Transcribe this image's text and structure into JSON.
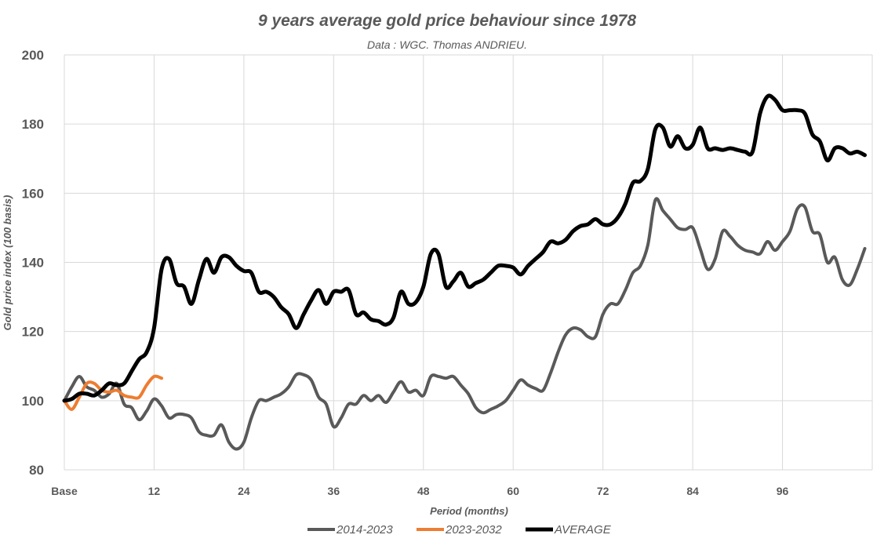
{
  "chart_data": {
    "type": "line",
    "title": "9 years average gold price behaviour since 1978",
    "subtitle": "Data : WGC. Thomas ANDRIEU.",
    "xlabel": "Period (months)",
    "ylabel": "Gold price index (100 basis)",
    "xlim": [
      0,
      108
    ],
    "ylim": [
      80,
      200
    ],
    "y_ticks": [
      "80",
      "100",
      "120",
      "140",
      "160",
      "180",
      "200"
    ],
    "x_ticks": [
      {
        "value": 0,
        "label": "Base"
      },
      {
        "value": 12,
        "label": "12"
      },
      {
        "value": 24,
        "label": "24"
      },
      {
        "value": 36,
        "label": "36"
      },
      {
        "value": 48,
        "label": "48"
      },
      {
        "value": 60,
        "label": "60"
      },
      {
        "value": 72,
        "label": "72"
      },
      {
        "value": 84,
        "label": "84"
      },
      {
        "value": 96,
        "label": "96"
      }
    ],
    "grid": true,
    "legend_position": "bottom",
    "series": [
      {
        "name": "2014-2023",
        "color": "#595959",
        "stroke_width": 4,
        "x": [
          0,
          1,
          2,
          3,
          4,
          5,
          6,
          7,
          8,
          9,
          10,
          11,
          12,
          13,
          14,
          15,
          16,
          17,
          18,
          19,
          20,
          21,
          22,
          23,
          24,
          25,
          26,
          27,
          28,
          29,
          30,
          31,
          32,
          33,
          34,
          35,
          36,
          37,
          38,
          39,
          40,
          41,
          42,
          43,
          44,
          45,
          46,
          47,
          48,
          49,
          50,
          51,
          52,
          53,
          54,
          55,
          56,
          57,
          58,
          59,
          60,
          61,
          62,
          63,
          64,
          65,
          66,
          67,
          68,
          69,
          70,
          71,
          72,
          73,
          74,
          75,
          76,
          77,
          78,
          79,
          80,
          81,
          82,
          83,
          84,
          85,
          86,
          87,
          88,
          89,
          90,
          91,
          92,
          93,
          94,
          95,
          96,
          97,
          98,
          99,
          100,
          101,
          102,
          103,
          104,
          105,
          106,
          107
        ],
        "values": [
          100,
          104,
          107,
          104,
          103,
          101,
          102,
          105,
          99,
          98,
          94.5,
          97,
          100.5,
          98.5,
          95,
          96,
          96,
          95,
          91,
          90,
          90,
          93,
          88,
          86,
          88,
          95,
          100,
          100,
          101,
          102,
          104,
          107.5,
          107.5,
          106,
          101,
          99,
          92.5,
          95,
          99,
          99,
          101.5,
          100,
          101.5,
          99.5,
          102.5,
          105.5,
          102.5,
          103,
          101.5,
          107,
          107,
          106.5,
          107,
          104.5,
          102,
          98,
          96.5,
          97.5,
          98.5,
          100,
          103,
          106,
          104.5,
          103.5,
          103,
          108,
          114,
          119,
          121,
          120.5,
          118.5,
          118.5,
          125,
          128,
          128,
          132,
          137,
          139,
          145,
          158,
          155,
          152.5,
          150,
          149.5,
          150,
          144,
          138,
          141,
          149,
          147.5,
          145,
          143.5,
          143,
          142.5,
          146,
          143.5,
          146,
          149,
          155.5,
          156,
          149,
          148,
          140,
          141.5,
          135,
          133.5,
          138,
          144
        ]
      },
      {
        "name": "2023-2032",
        "color": "#ed7d31",
        "stroke_width": 4,
        "x": [
          0,
          1,
          2,
          3,
          4,
          5,
          6,
          7,
          8,
          9,
          10,
          11,
          12,
          13
        ],
        "values": [
          100,
          97.5,
          101,
          105,
          105,
          103,
          102.5,
          103,
          101.5,
          101,
          101,
          104.5,
          107,
          106.5
        ]
      },
      {
        "name": "AVERAGE",
        "color": "#000000",
        "stroke_width": 5,
        "x": [
          0,
          1,
          2,
          3,
          4,
          5,
          6,
          7,
          8,
          9,
          10,
          11,
          12,
          13,
          14,
          15,
          16,
          17,
          18,
          19,
          20,
          21,
          22,
          23,
          24,
          25,
          26,
          27,
          28,
          29,
          30,
          31,
          32,
          33,
          34,
          35,
          36,
          37,
          38,
          39,
          40,
          41,
          42,
          43,
          44,
          45,
          46,
          47,
          48,
          49,
          50,
          51,
          52,
          53,
          54,
          55,
          56,
          57,
          58,
          59,
          60,
          61,
          62,
          63,
          64,
          65,
          66,
          67,
          68,
          69,
          70,
          71,
          72,
          73,
          74,
          75,
          76,
          77,
          78,
          79,
          80,
          81,
          82,
          83,
          84,
          85,
          86,
          87,
          88,
          89,
          90,
          91,
          92,
          93,
          94,
          95,
          96,
          97,
          98,
          99,
          100,
          101,
          102,
          103,
          104,
          105,
          106,
          107
        ],
        "values": [
          100,
          100.5,
          102,
          102,
          101.5,
          103,
          105,
          104.5,
          105,
          108.5,
          112,
          114,
          121,
          138,
          141,
          134,
          133,
          128,
          135,
          141,
          137,
          141.5,
          141.5,
          139,
          137.5,
          137,
          131.5,
          131.5,
          130,
          127,
          125,
          121,
          125,
          129,
          132,
          128,
          131.5,
          131.5,
          132,
          125,
          125.5,
          123.5,
          123,
          122,
          124,
          131.5,
          128,
          128.5,
          133,
          142.5,
          142.5,
          133,
          134.5,
          137,
          133,
          134,
          135,
          137,
          139,
          139,
          138.5,
          136.5,
          139,
          141,
          143,
          146,
          145.5,
          146.5,
          149,
          150.5,
          151,
          152.5,
          151,
          151,
          153,
          157,
          163,
          163.5,
          167,
          178.5,
          179,
          173.5,
          176.5,
          173,
          174,
          179,
          173,
          173,
          172.5,
          173,
          172.5,
          172,
          172,
          183,
          188,
          187,
          184,
          184,
          184,
          183,
          177,
          175,
          169.5,
          173,
          173,
          171.5,
          172,
          171
        ]
      }
    ]
  }
}
